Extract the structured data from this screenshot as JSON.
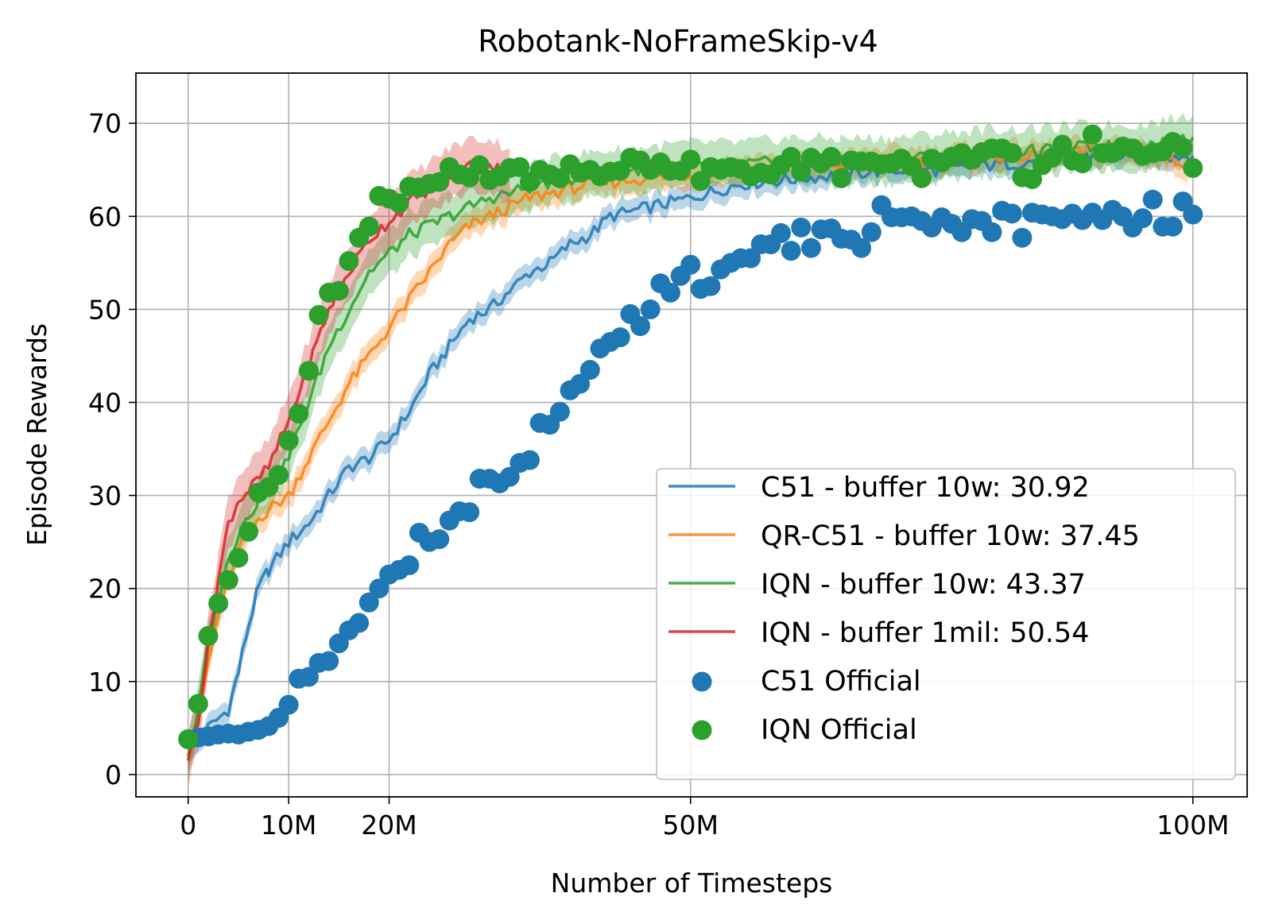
{
  "chart_data": {
    "type": "line",
    "title": "Robotank-NoFrameSkip-v4",
    "xlabel": "Number of Timesteps",
    "ylabel": "Episode Rewards",
    "xlim": [
      -5.2,
      105.4
    ],
    "ylim": [
      -2.4,
      75.4
    ],
    "x_ticks": [
      {
        "value": 0,
        "label": "0"
      },
      {
        "value": 10,
        "label": "10M"
      },
      {
        "value": 20,
        "label": "20M"
      },
      {
        "value": 50,
        "label": "50M"
      },
      {
        "value": 100,
        "label": "100M"
      }
    ],
    "y_ticks": [
      {
        "value": 0,
        "label": "0"
      },
      {
        "value": 10,
        "label": "10"
      },
      {
        "value": 20,
        "label": "20"
      },
      {
        "value": 30,
        "label": "30"
      },
      {
        "value": 40,
        "label": "40"
      },
      {
        "value": 50,
        "label": "50"
      },
      {
        "value": 60,
        "label": "60"
      },
      {
        "value": 70,
        "label": "70"
      }
    ],
    "grid": true,
    "legend_position": "bottom-right",
    "series": [
      {
        "name": "C51 - buffer 10w: 30.92",
        "kind": "line",
        "color": "#1f77b4",
        "band": 1.2,
        "x": [
          0,
          2,
          4,
          5,
          6,
          7,
          8,
          10,
          12,
          14,
          16,
          18,
          20,
          22,
          24,
          26,
          28,
          30,
          32,
          34,
          36,
          38,
          40,
          42,
          44,
          46,
          48,
          50,
          55,
          60,
          65,
          70,
          75,
          80,
          85,
          90,
          95,
          100
        ],
        "y": [
          2.0,
          5.0,
          7.0,
          11.0,
          16.0,
          20.0,
          22.0,
          25.0,
          27.0,
          30.0,
          33.0,
          34.0,
          36.0,
          39.0,
          43.0,
          46.0,
          49.0,
          50.0,
          52.0,
          54.0,
          55.0,
          57.0,
          58.0,
          60.0,
          60.5,
          61.0,
          61.5,
          62.0,
          63.5,
          64.0,
          64.5,
          65.0,
          65.0,
          65.5,
          66.0,
          66.5,
          66.5,
          66.5
        ]
      },
      {
        "name": "QR-C51 - buffer 10w: 37.45",
        "kind": "line",
        "color": "#ff7f0e",
        "band": 1.4,
        "x": [
          0,
          1,
          2,
          3,
          4,
          5,
          6,
          7,
          8,
          10,
          12,
          14,
          16,
          18,
          20,
          22,
          24,
          26,
          28,
          30,
          32,
          34,
          36,
          38,
          40,
          45,
          50,
          55,
          60,
          65,
          70,
          75,
          80,
          85,
          90,
          95,
          100
        ],
        "y": [
          2.0,
          6.0,
          12.0,
          17.0,
          21.0,
          24.0,
          26.0,
          27.5,
          28.5,
          30.0,
          34.0,
          38.0,
          42.0,
          45.0,
          48.0,
          51.0,
          54.0,
          57.0,
          59.0,
          60.0,
          61.0,
          62.0,
          62.5,
          63.0,
          63.5,
          64.0,
          64.5,
          65.0,
          65.5,
          65.5,
          66.0,
          66.0,
          66.5,
          66.5,
          67.0,
          67.0,
          65.5
        ]
      },
      {
        "name": "IQN - buffer 10w: 43.37",
        "kind": "line",
        "color": "#2ca02c",
        "band": 2.4,
        "x": [
          0,
          1,
          2,
          3,
          4,
          5,
          6,
          7,
          8,
          10,
          12,
          14,
          16,
          18,
          20,
          22,
          24,
          26,
          28,
          30,
          32,
          35,
          40,
          45,
          50,
          55,
          60,
          65,
          70,
          75,
          80,
          85,
          90,
          95,
          100
        ],
        "y": [
          2.0,
          7.0,
          14.0,
          19.0,
          23.0,
          26.0,
          28.0,
          29.5,
          31.0,
          34.0,
          40.0,
          46.0,
          50.0,
          54.0,
          56.0,
          58.0,
          59.0,
          60.0,
          61.0,
          62.0,
          62.5,
          63.5,
          64.5,
          65.0,
          65.5,
          65.5,
          66.0,
          66.0,
          66.0,
          66.5,
          67.0,
          67.0,
          67.5,
          67.5,
          68.5
        ]
      },
      {
        "name": "IQN - buffer 1mil: 50.54",
        "kind": "line",
        "color": "#d62728",
        "band": 2.8,
        "x": [
          0,
          1,
          2,
          3,
          4,
          5,
          6,
          8,
          10,
          12,
          14,
          16,
          18,
          20,
          22,
          24,
          26,
          28,
          30,
          32
        ],
        "y": [
          1.5,
          6.0,
          14.0,
          21.0,
          27.0,
          29.5,
          30.5,
          33.0,
          38.0,
          44.0,
          50.0,
          54.0,
          57.5,
          59.5,
          61.5,
          63.0,
          64.5,
          65.5,
          65.5,
          64.5
        ]
      },
      {
        "name": "C51 Official",
        "kind": "scatter",
        "color": "#1f77b4",
        "x": [
          0,
          1,
          2,
          3,
          4,
          5,
          6,
          7,
          8,
          9,
          10,
          11,
          12,
          13,
          14,
          15,
          16,
          17,
          18,
          19,
          20,
          21,
          22,
          23,
          24,
          25,
          26,
          27,
          28,
          29,
          30,
          31,
          32,
          33,
          34,
          35,
          36,
          37,
          38,
          39,
          40,
          41,
          42,
          43,
          44,
          45,
          46,
          47,
          48,
          49,
          50,
          51,
          52,
          53,
          54,
          55,
          56,
          57,
          58,
          59,
          60,
          61,
          62,
          63,
          64,
          65,
          66,
          67,
          68,
          69,
          70,
          71,
          72,
          73,
          74,
          75,
          76,
          77,
          78,
          79,
          80,
          81,
          82,
          83,
          84,
          85,
          86,
          87,
          88,
          89,
          90,
          91,
          92,
          93,
          94,
          95,
          96,
          97,
          98,
          99,
          100
        ],
        "y": [
          3.8,
          4.0,
          4.1,
          4.3,
          4.4,
          4.3,
          4.6,
          4.8,
          5.2,
          6.1,
          7.5,
          10.3,
          10.5,
          12.0,
          12.2,
          14.1,
          15.5,
          16.3,
          18.5,
          20.0,
          21.5,
          22.0,
          22.5,
          26.0,
          25.0,
          25.3,
          27.3,
          28.3,
          28.2,
          31.8,
          31.8,
          31.3,
          32.0,
          33.5,
          33.8,
          37.8,
          37.6,
          39.0,
          41.3,
          42.0,
          43.5,
          45.8,
          46.5,
          47.0,
          49.5,
          48.2,
          50.0,
          52.8,
          51.8,
          53.6,
          54.8,
          52.2,
          52.5,
          54.3,
          55.0,
          55.5,
          55.5,
          57.0,
          57.0,
          58.2,
          56.3,
          58.8,
          56.6,
          58.6,
          58.7,
          57.6,
          57.5,
          56.6,
          58.3,
          61.2,
          59.9,
          59.9,
          60.0,
          59.5,
          58.8,
          59.9,
          59.2,
          58.3,
          59.7,
          59.5,
          58.3,
          60.6,
          60.3,
          57.7,
          60.4,
          60.2,
          60.0,
          59.7,
          60.3,
          59.6,
          60.4,
          59.6,
          60.7,
          60.0,
          58.8,
          59.8,
          61.8,
          58.9,
          58.9,
          61.6,
          60.2
        ]
      },
      {
        "name": "IQN Official",
        "kind": "scatter",
        "color": "#2ca02c",
        "x": [
          0,
          1,
          2,
          3,
          4,
          5,
          6,
          7,
          8,
          9,
          10,
          11,
          12,
          13,
          14,
          15,
          16,
          17,
          18,
          19,
          20,
          21,
          22,
          23,
          24,
          25,
          26,
          27,
          28,
          29,
          30,
          31,
          32,
          33,
          34,
          35,
          36,
          37,
          38,
          39,
          40,
          41,
          42,
          43,
          44,
          45,
          46,
          47,
          48,
          49,
          50,
          51,
          52,
          53,
          54,
          55,
          56,
          57,
          58,
          59,
          60,
          61,
          62,
          63,
          64,
          65,
          66,
          67,
          68,
          69,
          70,
          71,
          72,
          73,
          74,
          75,
          76,
          77,
          78,
          79,
          80,
          81,
          82,
          83,
          84,
          85,
          86,
          87,
          88,
          89,
          90,
          91,
          92,
          93,
          94,
          95,
          96,
          97,
          98,
          99,
          100
        ],
        "y": [
          3.8,
          7.6,
          14.9,
          18.4,
          20.9,
          23.3,
          26.1,
          30.3,
          30.9,
          32.2,
          35.9,
          38.8,
          43.4,
          49.4,
          51.8,
          52.0,
          55.2,
          57.7,
          58.9,
          62.2,
          61.9,
          61.4,
          63.2,
          63.1,
          63.5,
          63.7,
          65.3,
          64.5,
          64.2,
          65.5,
          63.9,
          64.3,
          65.2,
          65.3,
          63.7,
          65.0,
          64.5,
          64.1,
          65.6,
          64.7,
          65.0,
          64.3,
          64.8,
          64.9,
          66.3,
          66.0,
          65.0,
          65.8,
          64.9,
          64.9,
          66.1,
          63.8,
          65.3,
          65.0,
          65.3,
          65.1,
          64.3,
          64.7,
          64.5,
          65.5,
          66.4,
          64.8,
          66.3,
          65.7,
          66.4,
          64.1,
          66.0,
          65.9,
          65.9,
          65.6,
          65.7,
          66.2,
          65.4,
          64.1,
          66.2,
          65.8,
          66.4,
          66.8,
          66.1,
          66.9,
          67.3,
          67.3,
          66.8,
          64.2,
          64.0,
          65.5,
          66.3,
          67.7,
          66.0,
          65.7,
          68.8,
          66.8,
          66.8,
          67.5,
          67.3,
          66.5,
          66.8,
          67.0,
          68.0,
          67.4,
          65.2
        ]
      }
    ]
  }
}
